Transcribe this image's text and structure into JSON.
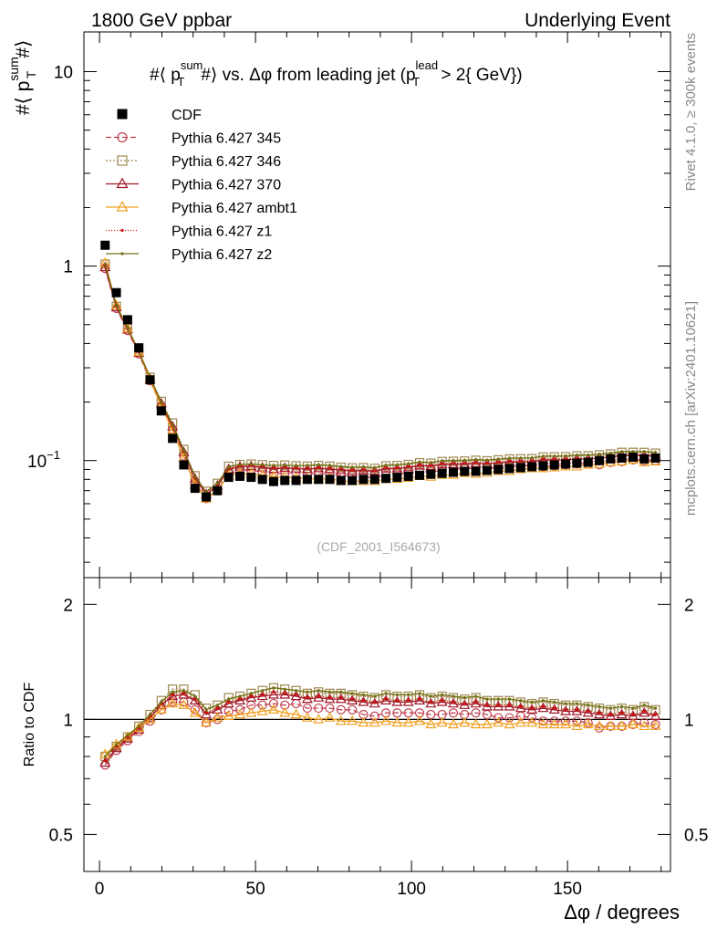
{
  "header": {
    "left": "1800 GeV ppbar",
    "right": "Underlying Event"
  },
  "side_labels": {
    "top": "Rivet 4.1.0, ≥ 300k events",
    "bottom": "mcplots.cern.ch [arXiv:2401.10621]"
  },
  "watermark": "(CDF_2001_I564673)",
  "chart_data": {
    "type": "scatter",
    "title": "#⟨ p_T^sum # ⟩ vs. Δφ from leading jet  (p_T^lead > 2{ GeV})",
    "title_parts": {
      "pre": "#⟨ p",
      "sup1": "sum",
      "sub1": "T",
      "mid": "#⟩ vs. Δφ from leading jet  (p",
      "sup2": "lead",
      "sub2": "T",
      "post": " > 2{ GeV})"
    },
    "ylabel_parts": {
      "pre": "#⟨ p",
      "sup": "sum",
      "sub": "T",
      "post": "#⟩"
    },
    "xlabel": "Δφ / degrees",
    "ratio_ylabel": "Ratio to CDF",
    "xlim": [
      -5,
      183
    ],
    "ylim": [
      0.025,
      16
    ],
    "ratio_ylim": [
      0.4,
      2.35
    ],
    "yscale": "log",
    "ratio_yscale": "log",
    "x_ticks": [
      "0",
      "50",
      "100",
      "150"
    ],
    "y_ticks": [
      "1",
      "10"
    ],
    "y_tick_special": {
      "base": "10",
      "exp": "−1"
    },
    "ratio_ticks": [
      "0.5",
      "1",
      "2"
    ],
    "x": [
      1.8,
      5.4,
      9,
      12.6,
      16.2,
      19.8,
      23.4,
      27,
      30.6,
      34.2,
      37.8,
      41.4,
      45,
      48.6,
      52.2,
      55.8,
      59.4,
      63,
      66.6,
      70.2,
      73.8,
      77.4,
      81,
      84.6,
      88.2,
      91.8,
      95.4,
      99,
      102.6,
      106.2,
      109.8,
      113.4,
      117,
      120.6,
      124.2,
      127.8,
      131.4,
      135,
      138.6,
      142.2,
      145.8,
      149.4,
      153,
      156.6,
      160.2,
      163.8,
      167.4,
      171,
      174.6,
      178.2
    ],
    "data": {
      "name": "CDF",
      "values": [
        1.28,
        0.73,
        0.53,
        0.38,
        0.26,
        0.18,
        0.13,
        0.095,
        0.072,
        0.065,
        0.07,
        0.082,
        0.083,
        0.082,
        0.08,
        0.078,
        0.079,
        0.079,
        0.08,
        0.08,
        0.08,
        0.079,
        0.079,
        0.08,
        0.08,
        0.081,
        0.082,
        0.083,
        0.084,
        0.085,
        0.086,
        0.087,
        0.088,
        0.088,
        0.089,
        0.09,
        0.091,
        0.092,
        0.093,
        0.094,
        0.095,
        0.096,
        0.097,
        0.098,
        0.1,
        0.102,
        0.103,
        0.104,
        0.102,
        0.103
      ]
    },
    "ratio_ref": 1,
    "series": [
      {
        "name": "Pythia 6.427 345",
        "color": "#c04050",
        "marker": "circle",
        "dash": "6,3",
        "ratio": [
          0.76,
          0.83,
          0.88,
          0.93,
          0.99,
          1.06,
          1.11,
          1.11,
          1.06,
          0.98,
          1.0,
          1.05,
          1.06,
          1.09,
          1.09,
          1.1,
          1.09,
          1.1,
          1.07,
          1.07,
          1.07,
          1.06,
          1.06,
          1.03,
          1.02,
          1.04,
          1.04,
          1.04,
          1.04,
          1.03,
          1.03,
          1.04,
          1.03,
          1.04,
          1.03,
          1.01,
          1.01,
          1.02,
          1.01,
          0.99,
          0.99,
          0.99,
          0.99,
          0.98,
          0.95,
          0.96,
          0.96,
          0.97,
          0.98,
          0.97
        ]
      },
      {
        "name": "Pythia 6.427 346",
        "color": "#a08850",
        "marker": "square",
        "dash": "2,2",
        "ratio": [
          0.8,
          0.85,
          0.9,
          0.96,
          1.03,
          1.12,
          1.2,
          1.2,
          1.16,
          1.07,
          1.09,
          1.14,
          1.15,
          1.17,
          1.19,
          1.21,
          1.2,
          1.19,
          1.17,
          1.18,
          1.17,
          1.17,
          1.16,
          1.15,
          1.14,
          1.16,
          1.15,
          1.15,
          1.16,
          1.14,
          1.15,
          1.14,
          1.13,
          1.14,
          1.12,
          1.12,
          1.12,
          1.11,
          1.1,
          1.11,
          1.1,
          1.09,
          1.09,
          1.08,
          1.07,
          1.06,
          1.07,
          1.06,
          1.08,
          1.06
        ]
      },
      {
        "name": "Pythia 6.427 370",
        "color": "#a01828",
        "marker": "triangle",
        "dash": "",
        "ratio": [
          0.77,
          0.84,
          0.89,
          0.94,
          1.01,
          1.09,
          1.15,
          1.16,
          1.12,
          1.03,
          1.06,
          1.1,
          1.12,
          1.14,
          1.15,
          1.16,
          1.16,
          1.15,
          1.13,
          1.14,
          1.13,
          1.13,
          1.12,
          1.11,
          1.1,
          1.12,
          1.11,
          1.11,
          1.12,
          1.1,
          1.11,
          1.1,
          1.09,
          1.1,
          1.08,
          1.08,
          1.08,
          1.07,
          1.06,
          1.07,
          1.06,
          1.05,
          1.05,
          1.04,
          1.03,
          1.02,
          1.03,
          1.02,
          1.04,
          1.02
        ]
      },
      {
        "name": "Pythia 6.427 ambt1",
        "color": "#f0a020",
        "marker": "triangle-open",
        "dash": "",
        "ratio": [
          0.81,
          0.86,
          0.9,
          0.95,
          1.0,
          1.06,
          1.1,
          1.09,
          1.04,
          0.98,
          1.01,
          1.02,
          1.03,
          1.04,
          1.05,
          1.06,
          1.04,
          1.03,
          1.01,
          1.0,
          1.01,
          0.99,
          0.99,
          0.98,
          0.98,
          0.99,
          0.98,
          0.98,
          0.99,
          0.97,
          0.98,
          0.97,
          0.98,
          0.97,
          0.97,
          0.98,
          0.97,
          0.98,
          0.98,
          0.97,
          0.97,
          0.97,
          0.96,
          0.97,
          0.96,
          0.96,
          0.96,
          0.97,
          0.96,
          0.96
        ]
      },
      {
        "name": "Pythia 6.427 z1",
        "color": "#cc1010",
        "marker": "dot",
        "dash": "1,2",
        "ratio": [
          0.78,
          0.85,
          0.9,
          0.95,
          1.02,
          1.1,
          1.16,
          1.17,
          1.13,
          1.04,
          1.07,
          1.11,
          1.13,
          1.15,
          1.16,
          1.18,
          1.17,
          1.16,
          1.14,
          1.15,
          1.14,
          1.14,
          1.13,
          1.12,
          1.11,
          1.13,
          1.12,
          1.12,
          1.13,
          1.11,
          1.12,
          1.11,
          1.1,
          1.11,
          1.09,
          1.09,
          1.09,
          1.08,
          1.07,
          1.08,
          1.07,
          1.06,
          1.06,
          1.05,
          1.04,
          1.03,
          1.04,
          1.03,
          1.05,
          1.03
        ]
      },
      {
        "name": "Pythia 6.427 z2",
        "color": "#707010",
        "marker": "dot",
        "dash": "",
        "ratio": [
          0.8,
          0.86,
          0.91,
          0.96,
          1.03,
          1.11,
          1.18,
          1.19,
          1.15,
          1.06,
          1.09,
          1.13,
          1.15,
          1.17,
          1.19,
          1.21,
          1.2,
          1.19,
          1.18,
          1.19,
          1.18,
          1.18,
          1.17,
          1.16,
          1.15,
          1.17,
          1.16,
          1.16,
          1.17,
          1.15,
          1.16,
          1.15,
          1.14,
          1.15,
          1.13,
          1.13,
          1.13,
          1.12,
          1.11,
          1.12,
          1.11,
          1.1,
          1.1,
          1.09,
          1.08,
          1.07,
          1.08,
          1.07,
          1.09,
          1.07
        ]
      }
    ]
  }
}
